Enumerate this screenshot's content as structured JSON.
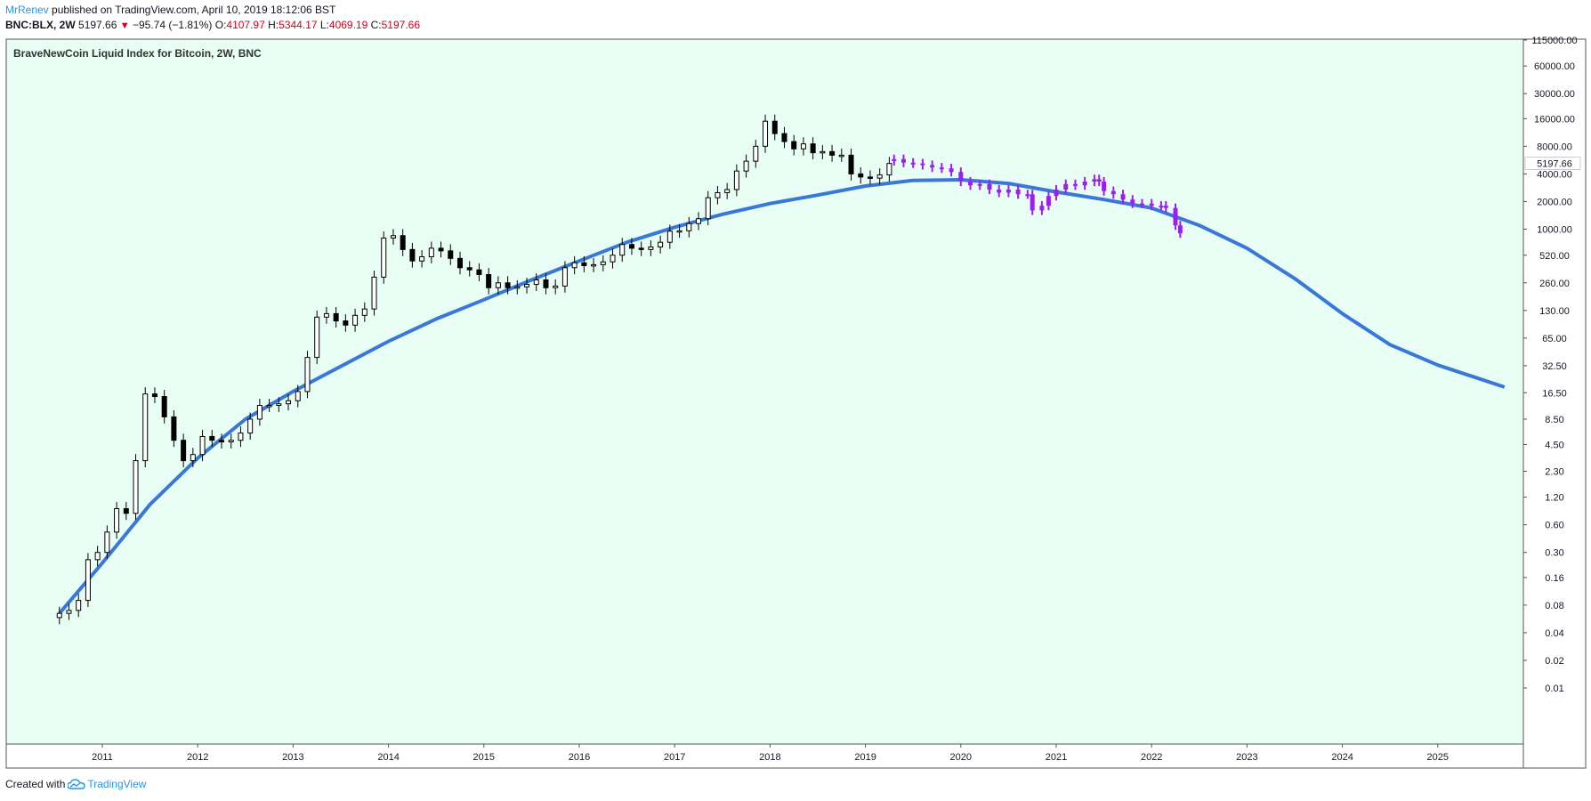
{
  "header": {
    "author": "MrRenev",
    "published_text": "published on TradingView.com, April 10, 2019 18:12:06 BST",
    "symbol": "BNC:BLX, 2W",
    "last_price": "5197.66",
    "change_text": "−95.74 (−1.81%)",
    "o_label": "O:",
    "o_value": "4107.97",
    "h_label": "H:",
    "h_value": "5344.17",
    "l_label": "L:",
    "l_value": "4069.19",
    "c_label": "C:",
    "c_value": "5197.66"
  },
  "footer": {
    "created_with": "Created with",
    "brand": "TradingView",
    "brand_icon": "tradingview-cloud-icon"
  },
  "colors": {
    "chart_bg": "#e8fdf3",
    "candle": "#000000",
    "projection": "#9b1ff5",
    "ma_line": "#3a78d8",
    "price_label_bg": "#ffffff",
    "accent": "#2196f3",
    "negative": "#d0021b"
  },
  "chart_data": {
    "type": "line",
    "title": "BraveNewCoin Liquid Index for Bitcoin, 2W, BNC",
    "scale": "log",
    "grid": false,
    "y_tick_labels": [
      "115000.00",
      "60000.00",
      "30000.00",
      "16000.00",
      "8000.00",
      "4000.00",
      "2000.00",
      "1000.00",
      "520.00",
      "260.00",
      "130.00",
      "65.00",
      "32.50",
      "16.50",
      "8.50",
      "4.50",
      "2.30",
      "1.20",
      "0.60",
      "0.30",
      "0.16",
      "0.08",
      "0.04",
      "0.02",
      "0.01"
    ],
    "x_tick_labels": [
      "2011",
      "2012",
      "2013",
      "2014",
      "2015",
      "2016",
      "2017",
      "2018",
      "2019",
      "2020",
      "2021",
      "2022",
      "2023",
      "2024",
      "2025"
    ],
    "last_price_label": "5197.66",
    "series": [
      {
        "type": "candlestick",
        "points": [
          [
            2010.55,
            0.065
          ],
          [
            2010.65,
            0.07
          ],
          [
            2010.75,
            0.09
          ],
          [
            2010.85,
            0.25
          ],
          [
            2010.95,
            0.3
          ],
          [
            2011.05,
            0.5
          ],
          [
            2011.15,
            0.9
          ],
          [
            2011.25,
            0.8
          ],
          [
            2011.35,
            3.0
          ],
          [
            2011.45,
            16
          ],
          [
            2011.55,
            15
          ],
          [
            2011.65,
            9
          ],
          [
            2011.75,
            5
          ],
          [
            2011.85,
            3
          ],
          [
            2011.95,
            3.5
          ],
          [
            2012.05,
            5.5
          ],
          [
            2012.15,
            5
          ],
          [
            2012.25,
            4.8
          ],
          [
            2012.35,
            5
          ],
          [
            2012.45,
            6
          ],
          [
            2012.55,
            8.5
          ],
          [
            2012.65,
            12
          ],
          [
            2012.75,
            12
          ],
          [
            2012.85,
            12.5
          ],
          [
            2012.95,
            13.5
          ],
          [
            2013.05,
            17
          ],
          [
            2013.15,
            40
          ],
          [
            2013.25,
            110
          ],
          [
            2013.35,
            120
          ],
          [
            2013.45,
            100
          ],
          [
            2013.55,
            90
          ],
          [
            2013.65,
            115
          ],
          [
            2013.75,
            135
          ],
          [
            2013.85,
            300
          ],
          [
            2013.95,
            800
          ],
          [
            2014.05,
            850
          ],
          [
            2014.15,
            600
          ],
          [
            2014.25,
            450
          ],
          [
            2014.35,
            500
          ],
          [
            2014.45,
            620
          ],
          [
            2014.55,
            580
          ],
          [
            2014.65,
            480
          ],
          [
            2014.75,
            380
          ],
          [
            2014.85,
            360
          ],
          [
            2014.95,
            320
          ],
          [
            2015.05,
            230
          ],
          [
            2015.15,
            260
          ],
          [
            2015.25,
            230
          ],
          [
            2015.35,
            235
          ],
          [
            2015.45,
            250
          ],
          [
            2015.55,
            280
          ],
          [
            2015.65,
            230
          ],
          [
            2015.75,
            240
          ],
          [
            2015.85,
            380
          ],
          [
            2015.95,
            430
          ],
          [
            2016.05,
            400
          ],
          [
            2016.15,
            410
          ],
          [
            2016.25,
            440
          ],
          [
            2016.35,
            520
          ],
          [
            2016.45,
            680
          ],
          [
            2016.55,
            620
          ],
          [
            2016.65,
            600
          ],
          [
            2016.75,
            640
          ],
          [
            2016.85,
            720
          ],
          [
            2016.95,
            950
          ],
          [
            2017.05,
            960
          ],
          [
            2017.15,
            1150
          ],
          [
            2017.25,
            1300
          ],
          [
            2017.35,
            2200
          ],
          [
            2017.45,
            2500
          ],
          [
            2017.55,
            2700
          ],
          [
            2017.65,
            4300
          ],
          [
            2017.75,
            5500
          ],
          [
            2017.85,
            8000
          ],
          [
            2017.95,
            15000
          ],
          [
            2018.05,
            11000
          ],
          [
            2018.15,
            9000
          ],
          [
            2018.25,
            7500
          ],
          [
            2018.35,
            8500
          ],
          [
            2018.45,
            6800
          ],
          [
            2018.55,
            7000
          ],
          [
            2018.65,
            6400
          ],
          [
            2018.75,
            6400
          ],
          [
            2018.85,
            4000
          ],
          [
            2018.95,
            3700
          ],
          [
            2019.05,
            3600
          ],
          [
            2019.15,
            3900
          ],
          [
            2019.25,
            5197.66
          ]
        ]
      },
      {
        "type": "projection",
        "points": [
          [
            2019.3,
            5800
          ],
          [
            2019.4,
            5300
          ],
          [
            2019.5,
            5200
          ],
          [
            2019.6,
            5000
          ],
          [
            2019.7,
            4700
          ],
          [
            2019.8,
            4600
          ],
          [
            2019.9,
            4200
          ],
          [
            2020.0,
            3300
          ],
          [
            2020.1,
            3000
          ],
          [
            2020.2,
            3100
          ],
          [
            2020.3,
            2700
          ],
          [
            2020.4,
            2500
          ],
          [
            2020.5,
            2700
          ],
          [
            2020.6,
            2400
          ],
          [
            2020.7,
            2400
          ],
          [
            2020.75,
            1600
          ],
          [
            2020.85,
            1800
          ],
          [
            2020.92,
            2300
          ],
          [
            2021.0,
            2700
          ],
          [
            2021.1,
            3100
          ],
          [
            2021.2,
            3000
          ],
          [
            2021.3,
            3300
          ],
          [
            2021.4,
            3500
          ],
          [
            2021.45,
            3300
          ],
          [
            2021.5,
            2600
          ],
          [
            2021.6,
            2400
          ],
          [
            2021.7,
            2100
          ],
          [
            2021.8,
            1900
          ],
          [
            2021.9,
            1900
          ],
          [
            2022.0,
            1800
          ],
          [
            2022.1,
            1800
          ],
          [
            2022.15,
            1700
          ],
          [
            2022.25,
            1100
          ],
          [
            2022.3,
            900
          ]
        ]
      },
      {
        "type": "moving-average",
        "points": [
          [
            2010.55,
            0.065
          ],
          [
            2011.0,
            0.23
          ],
          [
            2011.5,
            1.0
          ],
          [
            2012.0,
            3.2
          ],
          [
            2012.5,
            8.5
          ],
          [
            2013.0,
            17
          ],
          [
            2013.5,
            32
          ],
          [
            2014.0,
            60
          ],
          [
            2014.5,
            105
          ],
          [
            2015.0,
            170
          ],
          [
            2015.5,
            280
          ],
          [
            2016.0,
            450
          ],
          [
            2016.5,
            720
          ],
          [
            2017.0,
            1050
          ],
          [
            2017.5,
            1450
          ],
          [
            2018.0,
            1900
          ],
          [
            2018.5,
            2350
          ],
          [
            2019.0,
            2950
          ],
          [
            2019.5,
            3400
          ],
          [
            2020.0,
            3450
          ],
          [
            2020.5,
            3150
          ],
          [
            2021.0,
            2550
          ],
          [
            2021.5,
            2100
          ],
          [
            2022.0,
            1700
          ],
          [
            2022.5,
            1100
          ],
          [
            2023.0,
            620
          ],
          [
            2023.5,
            290
          ],
          [
            2024.0,
            120
          ],
          [
            2024.5,
            55
          ],
          [
            2025.0,
            33
          ],
          [
            2025.7,
            19
          ]
        ]
      }
    ]
  }
}
